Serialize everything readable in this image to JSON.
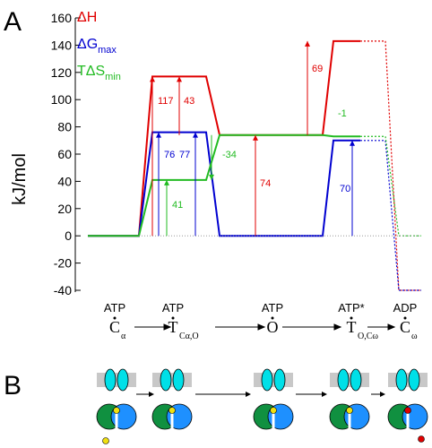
{
  "panel_a_label": "A",
  "panel_b_label": "B",
  "chart_data": {
    "type": "line",
    "ylabel": "kJ/mol",
    "ylim": [
      -40,
      160
    ],
    "yticks": [
      -40,
      -20,
      0,
      20,
      40,
      60,
      80,
      100,
      120,
      140,
      160
    ],
    "grid": false,
    "legend_position": "top-left",
    "legend": [
      {
        "text": "ΔH",
        "sub": "",
        "color": "#e00000"
      },
      {
        "text": "ΔG",
        "sub": "max",
        "color": "#0000d0"
      },
      {
        "text": "TΔS",
        "sub": "min",
        "color": "#22bb22"
      }
    ],
    "states": [
      {
        "top": "ATP",
        "main": "C",
        "sub": "α"
      },
      {
        "top": "ATP",
        "main": "T",
        "sub": "Cα,O"
      },
      {
        "top": "ATP",
        "main": "O",
        "sub": ""
      },
      {
        "top": "ATP*",
        "main": "T",
        "sub": "O,Cω"
      },
      {
        "top": "ADP",
        "main": "C",
        "sub": "ω"
      }
    ],
    "series": [
      {
        "name": "ΔH",
        "color": "#e00000",
        "values": [
          0,
          117,
          74,
          143,
          -40
        ]
      },
      {
        "name": "ΔGmax",
        "color": "#0000d0",
        "values": [
          0,
          76,
          0,
          70,
          -40
        ]
      },
      {
        "name": "TΔSmin",
        "color": "#22bb22",
        "values": [
          0,
          41,
          74,
          73,
          0
        ]
      }
    ],
    "annotations": [
      {
        "text": "117",
        "color": "#e00000"
      },
      {
        "text": "43",
        "color": "#e00000"
      },
      {
        "text": "76",
        "color": "#0000d0"
      },
      {
        "text": "77",
        "color": "#0000d0"
      },
      {
        "text": "41",
        "color": "#22bb22"
      },
      {
        "text": "-34",
        "color": "#22bb22"
      },
      {
        "text": "74",
        "color": "#e00000"
      },
      {
        "text": "69",
        "color": "#e00000"
      },
      {
        "text": "-1",
        "color": "#22bb22"
      },
      {
        "text": "70",
        "color": "#0000d0"
      }
    ]
  }
}
